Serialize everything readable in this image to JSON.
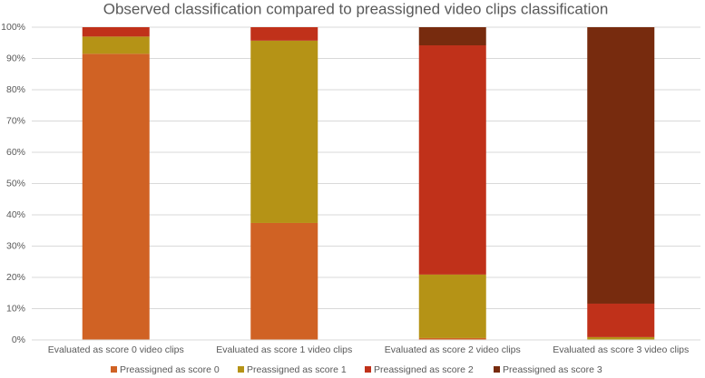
{
  "chart_data": {
    "type": "stacked-bar",
    "title": "Observed classification compared to preassigned video clips classification",
    "categories": [
      "Evaluated as score 0 video clips",
      "Evaluated as score 1 video clips",
      "Evaluated as score 2 video clips",
      "Evaluated as score 3 video clips"
    ],
    "series": [
      {
        "name": "Preassigned as score 0",
        "color": "#d06224",
        "values": [
          91.5,
          37.4,
          0.6,
          0
        ]
      },
      {
        "name": "Preassigned as score 1",
        "color": "#b59316",
        "values": [
          5.5,
          58.3,
          20.3,
          0.9
        ]
      },
      {
        "name": "Preassigned as score 2",
        "color": "#c0311a",
        "values": [
          3,
          4.3,
          73.3,
          10.7
        ]
      },
      {
        "name": "Preassigned as score 3",
        "color": "#772b0e",
        "values": [
          0,
          0,
          5.8,
          88.4
        ]
      }
    ],
    "ylim": [
      0,
      100
    ],
    "yticks": [
      {
        "value": 0,
        "label": "0%"
      },
      {
        "value": 10,
        "label": "10%"
      },
      {
        "value": 20,
        "label": "20%"
      },
      {
        "value": 30,
        "label": "30%"
      },
      {
        "value": 40,
        "label": "40%"
      },
      {
        "value": 50,
        "label": "50%"
      },
      {
        "value": 60,
        "label": "60%"
      },
      {
        "value": 70,
        "label": "70%"
      },
      {
        "value": 80,
        "label": "80%"
      },
      {
        "value": 90,
        "label": "90%"
      },
      {
        "value": 100,
        "label": "100%"
      }
    ],
    "grid": true,
    "legend": "bottom"
  }
}
